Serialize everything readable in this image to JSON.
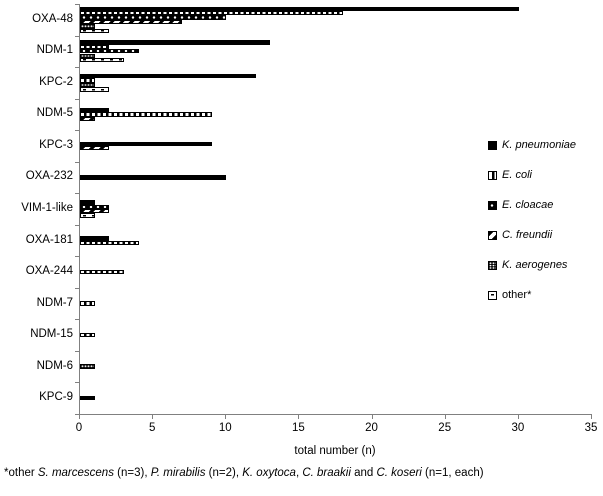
{
  "figure": {
    "background": "#ffffff",
    "bar_color": "#000000",
    "axis_color": "#808080"
  },
  "chart_data": {
    "type": "bar",
    "orientation": "horizontal",
    "title": "",
    "xlabel": "total number (n)",
    "ylabel": "",
    "xlim": [
      0,
      35
    ],
    "xticks": [
      0,
      5,
      10,
      15,
      20,
      25,
      30,
      35
    ],
    "grid": false,
    "legend_position": "right",
    "categories": [
      "OXA-48",
      "NDM-1",
      "KPC-2",
      "NDM-5",
      "KPC-3",
      "OXA-232",
      "VIM-1-like",
      "OXA-181",
      "OXA-244",
      "NDM-7",
      "NDM-15",
      "NDM-6",
      "KPC-9"
    ],
    "series": [
      {
        "name": "K. pneumoniae",
        "italic": true,
        "pattern": "kp",
        "pattern_desc": "solid black",
        "values": [
          30,
          13,
          12,
          2,
          9,
          10,
          1,
          2,
          0,
          0,
          0,
          0,
          1
        ]
      },
      {
        "name": "E. coli",
        "italic": true,
        "pattern": "ec",
        "pattern_desc": "white squares on black",
        "values": [
          18,
          2,
          1,
          9,
          0,
          0,
          0,
          4,
          3,
          1,
          1,
          0,
          0
        ]
      },
      {
        "name": "E. cloacae",
        "italic": true,
        "pattern": "ecl",
        "pattern_desc": "black with white dots",
        "values": [
          10,
          4,
          0,
          0,
          0,
          0,
          2,
          0,
          0,
          0,
          0,
          0,
          0
        ]
      },
      {
        "name": "C. freundii",
        "italic": true,
        "pattern": "cf",
        "pattern_desc": "bold diagonal stripes",
        "values": [
          7,
          0,
          0,
          1,
          2,
          0,
          2,
          0,
          0,
          0,
          0,
          0,
          0
        ]
      },
      {
        "name": "K. aerogenes",
        "italic": true,
        "pattern": "ka",
        "pattern_desc": "dense white dot grid on black",
        "values": [
          1,
          1,
          1,
          0,
          0,
          0,
          0,
          0,
          0,
          0,
          0,
          1,
          0
        ]
      },
      {
        "name": "other*",
        "italic": false,
        "pattern": "other",
        "pattern_desc": "white with black dashes",
        "values": [
          2,
          3,
          2,
          0,
          0,
          0,
          1,
          0,
          0,
          0,
          0,
          0,
          0
        ]
      }
    ],
    "footnote_segments": [
      {
        "text": "*other ",
        "italic": false
      },
      {
        "text": "S. marcescens",
        "italic": true
      },
      {
        "text": " (n=3), ",
        "italic": false
      },
      {
        "text": "P. mirabilis",
        "italic": true
      },
      {
        "text": " (n=2), ",
        "italic": false
      },
      {
        "text": "K. oxytoca",
        "italic": true
      },
      {
        "text": ", ",
        "italic": false
      },
      {
        "text": "C. braakii",
        "italic": true
      },
      {
        "text": " and ",
        "italic": false
      },
      {
        "text": "C. koseri",
        "italic": true
      },
      {
        "text": " (n=1, each)",
        "italic": false
      }
    ]
  },
  "layout_text": {
    "xaxis_title": "total number (n)"
  }
}
